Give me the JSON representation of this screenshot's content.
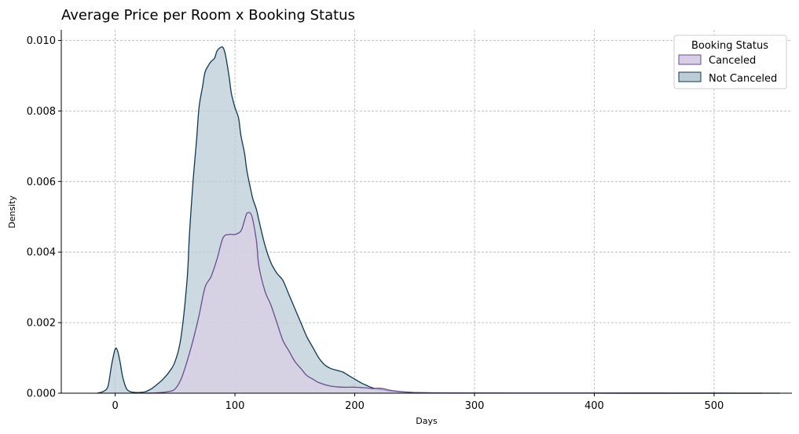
{
  "chart_data": {
    "type": "area",
    "title": "Average Price per Room x Booking Status",
    "xlabel": "Days",
    "ylabel": "Density",
    "xlim": [
      -45,
      565
    ],
    "ylim": [
      0,
      0.0103
    ],
    "xticks": [
      0,
      100,
      200,
      300,
      400,
      500
    ],
    "yticks": [
      0.0,
      0.002,
      0.004,
      0.006,
      0.008,
      0.01
    ],
    "xtick_labels": [
      "0",
      "100",
      "200",
      "300",
      "400",
      "500"
    ],
    "ytick_labels": [
      "0.000",
      "0.002",
      "0.004",
      "0.006",
      "0.008",
      "0.010"
    ],
    "grid": true,
    "legend": {
      "title": "Booking Status",
      "placement": "top-right"
    },
    "series": [
      {
        "name": "Canceled",
        "color": "#6a4c93",
        "fill": "#d8cfe6",
        "x": [
          25,
          35,
          45,
          50,
          55,
          60,
          65,
          70,
          75,
          80,
          85,
          90,
          95,
          100,
          105,
          108,
          110,
          113,
          115,
          118,
          120,
          125,
          130,
          135,
          140,
          145,
          150,
          155,
          160,
          165,
          170,
          180,
          190,
          200,
          210,
          215,
          220,
          225,
          230,
          240,
          250,
          270,
          300,
          350,
          400,
          450,
          500,
          540
        ],
        "y": [
          0,
          1e-05,
          5e-05,
          0.00012,
          0.0004,
          0.0009,
          0.0015,
          0.0022,
          0.003,
          0.0033,
          0.0038,
          0.0044,
          0.0045,
          0.0045,
          0.0046,
          0.0049,
          0.0051,
          0.0051,
          0.0049,
          0.0043,
          0.0036,
          0.0029,
          0.0025,
          0.002,
          0.0015,
          0.0012,
          0.0009,
          0.0007,
          0.0005,
          0.0004,
          0.0003,
          0.0002,
          0.00017,
          0.00017,
          0.00015,
          0.00013,
          0.00014,
          0.00012,
          8e-05,
          4e-05,
          2e-05,
          1e-05,
          5e-06,
          3e-06,
          2e-06,
          1e-06,
          5e-07,
          0
        ]
      },
      {
        "name": "Not Canceled",
        "color": "#0b3954",
        "fill": "#bcccd5",
        "x": [
          -15,
          -10,
          -6,
          -3,
          0,
          2,
          4,
          6,
          8,
          10,
          13,
          17,
          20,
          25,
          30,
          35,
          40,
          45,
          50,
          55,
          60,
          62,
          65,
          68,
          70,
          73,
          75,
          78,
          80,
          83,
          85,
          88,
          90,
          92,
          95,
          97,
          100,
          103,
          105,
          108,
          110,
          113,
          115,
          118,
          120,
          125,
          130,
          135,
          140,
          145,
          150,
          155,
          160,
          165,
          170,
          175,
          180,
          185,
          190,
          195,
          200,
          205,
          210,
          215,
          220,
          230,
          240,
          250,
          260,
          270,
          280,
          300,
          350,
          400,
          450,
          500,
          555
        ],
        "y": [
          0,
          5e-05,
          0.0002,
          0.0008,
          0.00125,
          0.0012,
          0.0009,
          0.0005,
          0.00025,
          0.0001,
          4e-05,
          2e-05,
          2e-05,
          4e-05,
          0.00012,
          0.00025,
          0.0004,
          0.0006,
          0.0009,
          0.0016,
          0.0032,
          0.0045,
          0.006,
          0.0072,
          0.0081,
          0.0087,
          0.0091,
          0.0093,
          0.0094,
          0.0095,
          0.0097,
          0.0098,
          0.0098,
          0.0096,
          0.009,
          0.0085,
          0.0081,
          0.0078,
          0.0073,
          0.0068,
          0.0063,
          0.0058,
          0.0055,
          0.0052,
          0.0049,
          0.0042,
          0.0037,
          0.0034,
          0.0032,
          0.0028,
          0.0024,
          0.002,
          0.0016,
          0.0013,
          0.001,
          0.0008,
          0.0007,
          0.00065,
          0.0006,
          0.0005,
          0.0004,
          0.0003,
          0.00022,
          0.00015,
          0.00011,
          6e-05,
          3e-05,
          2e-05,
          1e-05,
          8e-06,
          5e-06,
          4e-06,
          3e-06,
          2e-06,
          1.5e-06,
          1e-06,
          0
        ]
      }
    ]
  }
}
